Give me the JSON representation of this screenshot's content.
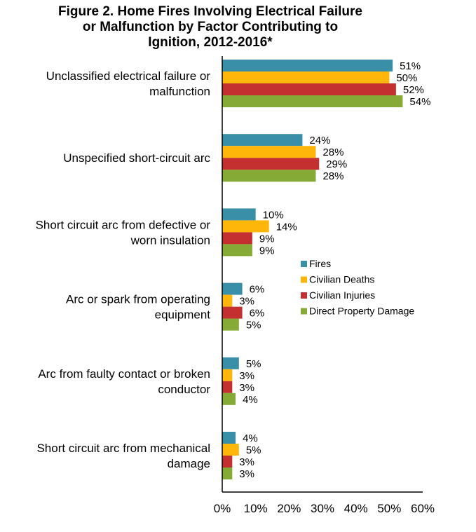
{
  "chart_data": {
    "type": "bar",
    "orientation": "horizontal",
    "title": "Figure 2. Home Fires Involving Electrical Failure\nor Malfunction by Factor Contributing to\nIgnition, 2012-2016*",
    "categories": [
      [
        "Unclassified electrical failure or",
        "malfunction"
      ],
      [
        "Unspecified short-circuit arc"
      ],
      [
        "Short circuit arc from defective or",
        "worn insulation"
      ],
      [
        "Arc or spark from operating",
        "equipment"
      ],
      [
        "Arc from faulty contact or broken",
        "conductor"
      ],
      [
        "Short circuit arc from mechanical",
        "damage"
      ]
    ],
    "series": [
      {
        "name": "Fires",
        "color": "#3A8FA8",
        "values": [
          51,
          24,
          10,
          6,
          5,
          4
        ]
      },
      {
        "name": "Civilian Deaths",
        "color": "#FFB60A",
        "values": [
          50,
          28,
          14,
          3,
          3,
          5
        ]
      },
      {
        "name": "Civilian Injuries",
        "color": "#C4302F",
        "values": [
          52,
          29,
          9,
          6,
          3,
          3
        ]
      },
      {
        "name": "Direct Property Damage",
        "color": "#85AA35",
        "values": [
          54,
          28,
          9,
          5,
          4,
          3
        ]
      }
    ],
    "xlim": [
      0,
      60
    ],
    "xticks": [
      "0%",
      "10%",
      "20%",
      "30%",
      "40%",
      "50%",
      "60%"
    ],
    "value_suffix": "%",
    "grid": false,
    "legend_position": "right-middle"
  }
}
